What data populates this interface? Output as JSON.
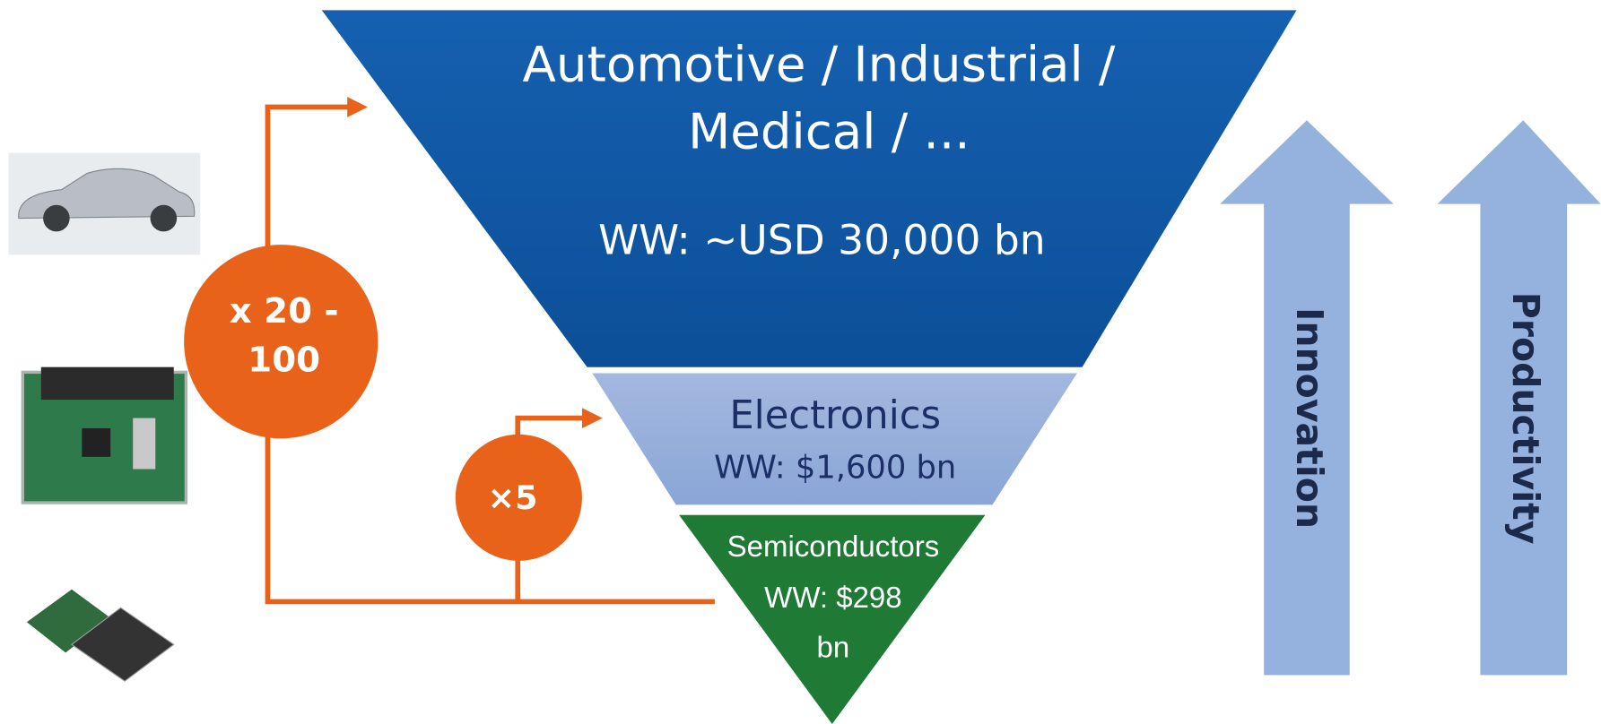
{
  "top": {
    "lines": [
      "Automotive / Industrial /",
      "Medical / ..."
    ],
    "value": "WW: ~USD 30,000 bn"
  },
  "middle": {
    "title": "Electronics",
    "value": "WW: $1,600 bn"
  },
  "bottom": {
    "lines": [
      "Semiconductors",
      "WW: $298",
      "bn"
    ]
  },
  "multipliers": [
    {
      "lines": [
        "x 20 -",
        "100"
      ]
    },
    {
      "lines": [
        "×5"
      ]
    }
  ],
  "arrows": [
    "Innovation",
    "Productivity"
  ]
}
